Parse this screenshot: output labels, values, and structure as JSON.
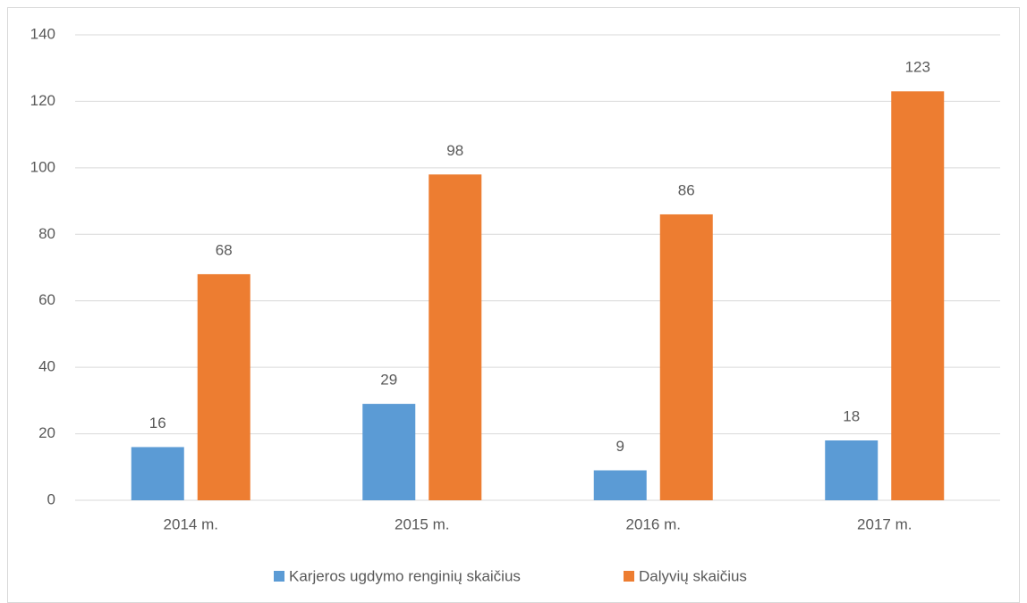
{
  "chart_data": {
    "type": "bar",
    "categories": [
      "2014 m.",
      "2015 m.",
      "2016 m.",
      "2017 m."
    ],
    "series": [
      {
        "name": "Karjeros ugdymo renginių skaičius",
        "color": "#5b9bd5",
        "values": [
          16,
          29,
          9,
          18
        ]
      },
      {
        "name": "Dalyvių skaičius",
        "color": "#ed7d31",
        "values": [
          68,
          98,
          86,
          123
        ]
      }
    ],
    "ylim": [
      0,
      140
    ],
    "yticks": [
      0,
      20,
      40,
      60,
      80,
      100,
      120,
      140
    ],
    "grid": true,
    "legend": "bottom"
  }
}
